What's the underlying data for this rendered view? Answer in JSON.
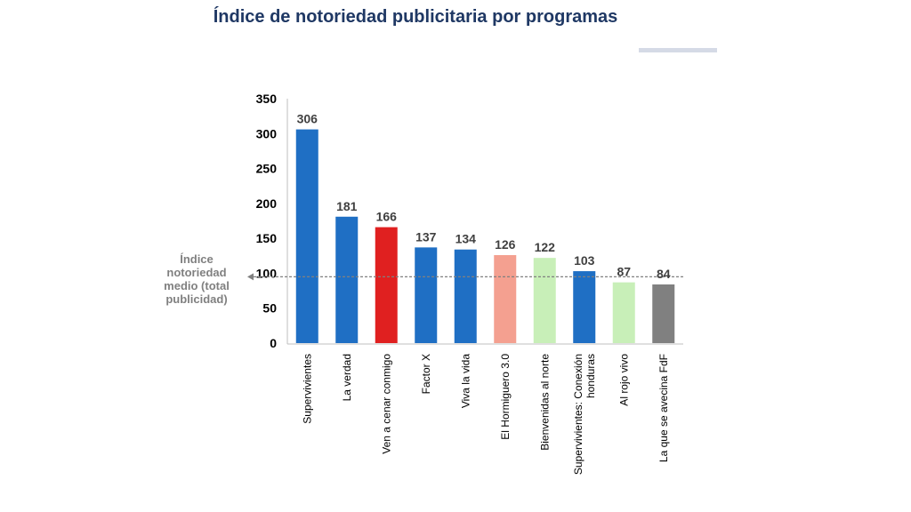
{
  "chart_data": {
    "type": "bar",
    "title": "Índice de notoriedad publicitaria por programas",
    "xlabel": "",
    "ylabel": "",
    "ylim": [
      0,
      350
    ],
    "yticks": [
      0,
      50,
      100,
      150,
      200,
      250,
      300,
      350
    ],
    "grid": false,
    "legend": "none",
    "categories": [
      [
        "Supervivientes"
      ],
      [
        "La verdad"
      ],
      [
        "Ven a cenar conmigo"
      ],
      [
        "Factor X"
      ],
      [
        "Viva la vida"
      ],
      [
        "El Hormiguero 3.0"
      ],
      [
        "Bienvenidas al norte"
      ],
      [
        "Supervivientes: Conexión",
        "honduras"
      ],
      [
        "Al rojo vivo"
      ],
      [
        "La que se avecina FdF"
      ]
    ],
    "values": [
      306,
      181,
      166,
      137,
      134,
      126,
      122,
      103,
      87,
      84
    ],
    "bar_colors": [
      "#1f6fc4",
      "#1f6fc4",
      "#e02020",
      "#1f6fc4",
      "#1f6fc4",
      "#f4a090",
      "#c8efb8",
      "#1f6fc4",
      "#c8efb8",
      "#808080"
    ],
    "reference_line": {
      "value": 95,
      "label": [
        "Índice",
        "notoriedad",
        "medio (total",
        "publicidad)"
      ],
      "color": "#808080"
    }
  }
}
